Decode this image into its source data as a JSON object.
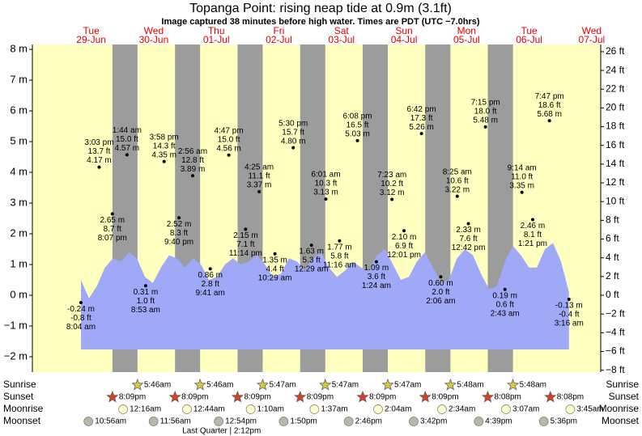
{
  "chart_data": {
    "type": "tide",
    "title": "Topanga Point: rising  neap tide at 0.9m (3.1ft)",
    "subtitle": "Image captured 38 minutes before high water. Times are PDT (UTC −7.0hrs)",
    "ylim": [
      -2.5,
      8.16
    ],
    "yticks": [
      {
        "value": 8,
        "label": "8 m"
      },
      {
        "value": 7,
        "label": "7 m"
      },
      {
        "value": 6,
        "label": "6 m"
      },
      {
        "value": 5,
        "label": "5 m"
      },
      {
        "value": 4,
        "label": "4 m"
      },
      {
        "value": 3,
        "label": "3 m"
      },
      {
        "value": 2,
        "label": "2 m"
      },
      {
        "value": 1,
        "label": "1 m"
      },
      {
        "value": 0,
        "label": "0 m"
      },
      {
        "value": -1,
        "label": "−1 m"
      },
      {
        "value": -2,
        "label": "−2 m"
      }
    ],
    "y2lim": [
      -8.2,
      26.77
    ],
    "y2ticks": [
      {
        "value": 26,
        "label": "26 ft"
      },
      {
        "value": 24,
        "label": "24 ft"
      },
      {
        "value": 22,
        "label": "22 ft"
      },
      {
        "value": 20,
        "label": "20 ft"
      },
      {
        "value": 18,
        "label": "18 ft"
      },
      {
        "value": 16,
        "label": "16 ft"
      },
      {
        "value": 14,
        "label": "14 ft"
      },
      {
        "value": 12,
        "label": "12 ft"
      },
      {
        "value": 10,
        "label": "10 ft"
      },
      {
        "value": 8,
        "label": "8 ft"
      },
      {
        "value": 6,
        "label": "6 ft"
      },
      {
        "value": 4,
        "label": "4 ft"
      },
      {
        "value": 2,
        "label": "2 ft"
      },
      {
        "value": 0,
        "label": "0 ft"
      },
      {
        "value": -2,
        "label": "−2 ft"
      },
      {
        "value": -4,
        "label": "−4 ft"
      },
      {
        "value": -6,
        "label": "−6 ft"
      },
      {
        "value": -8,
        "label": "−8 ft"
      }
    ],
    "colors": {
      "day": "#ffffc0",
      "night": "#9c9c9c",
      "water": "#a0a8f8",
      "date": "#e00000"
    },
    "water_level": [
      0.5,
      -0.1,
      0.3,
      0.9,
      1.2,
      1.1,
      1.4,
      1.2,
      0.6,
      0.4,
      0.9,
      1.3,
      1.2,
      0.9,
      1.2,
      1.0,
      0.5,
      0.6,
      1.0,
      1.2,
      1.0,
      1.1,
      1.3,
      1.0,
      0.6,
      0.7,
      1.2,
      1.1,
      0.8,
      1.2,
      1.4,
      0.9,
      0.6,
      0.8,
      1.1,
      0.9,
      0.8,
      1.3,
      1.5,
      1.0,
      0.5,
      0.6,
      1.1,
      1.4,
      0.9,
      0.4,
      0.5,
      1.2,
      1.5,
      1.3,
      0.7,
      0.2,
      0.3,
      1.1,
      1.6,
      1.3,
      0.9,
      0.9,
      1.5,
      1.7,
      1.1,
      0.1
    ],
    "rows": [
      "Sunrise",
      "Sunset",
      "Moonrise",
      "Moonset"
    ],
    "days": [
      {
        "weekday": "Tue",
        "date": "29-Jun",
        "sunrise": null,
        "sunset": "8:09pm",
        "moonrise": null,
        "moonset": "10:56am",
        "tides": [
          {
            "time": "8:04 am",
            "ft": "-0.8 ft",
            "m": -0.24,
            "m_label": "-0.24 m"
          },
          {
            "time": "3:03 pm",
            "ft": "13.7 ft",
            "m": 4.17,
            "m_label": "4.17 m"
          },
          {
            "time": "8:07 pm",
            "ft": "8.7 ft",
            "m": 2.65,
            "m_label": "2.65 m"
          }
        ]
      },
      {
        "weekday": "Wed",
        "date": "30-Jun",
        "sunrise": "5:46am",
        "sunset": "8:09pm",
        "moonrise": "12:16am",
        "moonset": "11:56am",
        "tides": [
          {
            "time": "1:44 am",
            "ft": "15.0 ft",
            "m": 4.57,
            "m_label": "4.57 m"
          },
          {
            "time": "8:53 am",
            "ft": "1.0 ft",
            "m": 0.31,
            "m_label": "0.31 m"
          },
          {
            "time": "3:58 pm",
            "ft": "14.3 ft",
            "m": 4.35,
            "m_label": "4.35 m"
          },
          {
            "time": "9:40 pm",
            "ft": "8.3 ft",
            "m": 2.52,
            "m_label": "2.52 m"
          }
        ]
      },
      {
        "weekday": "Thu",
        "date": "01-Jul",
        "sunrise": "5:46am",
        "sunset": "8:09pm",
        "moonrise": "12:44am",
        "moonset": "12:54pm",
        "moon_phase": "Last Quarter | 2:12pm",
        "tides": [
          {
            "time": "2:56 am",
            "ft": "12.8 ft",
            "m": 3.89,
            "m_label": "3.89 m"
          },
          {
            "time": "9:41 am",
            "ft": "2.8 ft",
            "m": 0.86,
            "m_label": "0.86 m"
          },
          {
            "time": "4:47 pm",
            "ft": "15.0 ft",
            "m": 4.56,
            "m_label": "4.56 m"
          },
          {
            "time": "11:14 pm",
            "ft": "7.1 ft",
            "m": 2.15,
            "m_label": "2.15 m"
          }
        ]
      },
      {
        "weekday": "Fri",
        "date": "02-Jul",
        "sunrise": "5:47am",
        "sunset": "8:09pm",
        "moonrise": "1:10am",
        "moonset": "1:50pm",
        "tides": [
          {
            "time": "4:25 am",
            "ft": "11.1 ft",
            "m": 3.37,
            "m_label": "3.37 m"
          },
          {
            "time": "10:29 am",
            "ft": "4.4 ft",
            "m": 1.35,
            "m_label": "1.35 m"
          },
          {
            "time": "5:30 pm",
            "ft": "15.7 ft",
            "m": 4.8,
            "m_label": "4.80 m"
          }
        ]
      },
      {
        "weekday": "Sat",
        "date": "03-Jul",
        "sunrise": "5:47am",
        "sunset": "8:09pm",
        "moonrise": "1:37am",
        "moonset": "2:46pm",
        "tides": [
          {
            "time": "12:29 am",
            "ft": "5.3 ft",
            "m": 1.63,
            "m_label": "1.63 m"
          },
          {
            "time": "6:01 am",
            "ft": "10.3 ft",
            "m": 3.13,
            "m_label": "3.13 m"
          },
          {
            "time": "11:16 am",
            "ft": "5.8 ft",
            "m": 1.77,
            "m_label": "1.77 m"
          },
          {
            "time": "6:08 pm",
            "ft": "16.5 ft",
            "m": 5.03,
            "m_label": "5.03 m"
          }
        ]
      },
      {
        "weekday": "Sun",
        "date": "04-Jul",
        "sunrise": "5:47am",
        "sunset": "8:09pm",
        "moonrise": "2:04am",
        "moonset": "3:42pm",
        "tides": [
          {
            "time": "1:24 am",
            "ft": "3.6 ft",
            "m": 1.09,
            "m_label": "1.09 m"
          },
          {
            "time": "7:23 am",
            "ft": "10.2 ft",
            "m": 3.12,
            "m_label": "3.12 m"
          },
          {
            "time": "12:01 pm",
            "ft": "6.9 ft",
            "m": 2.1,
            "m_label": "2.10 m"
          },
          {
            "time": "6:42 pm",
            "ft": "17.3 ft",
            "m": 5.26,
            "m_label": "5.26 m"
          }
        ]
      },
      {
        "weekday": "Mon",
        "date": "05-Jul",
        "sunrise": "5:48am",
        "sunset": "8:08pm",
        "moonrise": "2:34am",
        "moonset": "4:39pm",
        "tides": [
          {
            "time": "2:06 am",
            "ft": "2.0 ft",
            "m": 0.6,
            "m_label": "0.60 m"
          },
          {
            "time": "8:25 am",
            "ft": "10.6 ft",
            "m": 3.22,
            "m_label": "3.22 m"
          },
          {
            "time": "12:42 pm",
            "ft": "7.6 ft",
            "m": 2.33,
            "m_label": "2.33 m"
          },
          {
            "time": "7:15 pm",
            "ft": "18.0 ft",
            "m": 5.48,
            "m_label": "5.48 m"
          }
        ]
      },
      {
        "weekday": "Tue",
        "date": "06-Jul",
        "sunrise": "5:48am",
        "sunset": "8:08pm",
        "moonrise": "3:07am",
        "moonset": "5:36pm",
        "tides": [
          {
            "time": "2:43 am",
            "ft": "0.6 ft",
            "m": 0.19,
            "m_label": "0.19 m"
          },
          {
            "time": "9:14 am",
            "ft": "11.0 ft",
            "m": 3.35,
            "m_label": "3.35 m"
          },
          {
            "time": "1:21 pm",
            "ft": "8.1 ft",
            "m": 2.46,
            "m_label": "2.46 m"
          },
          {
            "time": "7:47 pm",
            "ft": "18.6 ft",
            "m": 5.68,
            "m_label": "5.68 m"
          }
        ]
      },
      {
        "weekday": "Wed",
        "date": "07-Jul",
        "sunrise": null,
        "sunset": null,
        "moonrise": "3:45am",
        "moonset": null,
        "tides": [
          {
            "time": "3:16 am",
            "ft": "-0.4 ft",
            "m": -0.13,
            "m_label": "-0.13 m"
          }
        ]
      }
    ]
  }
}
